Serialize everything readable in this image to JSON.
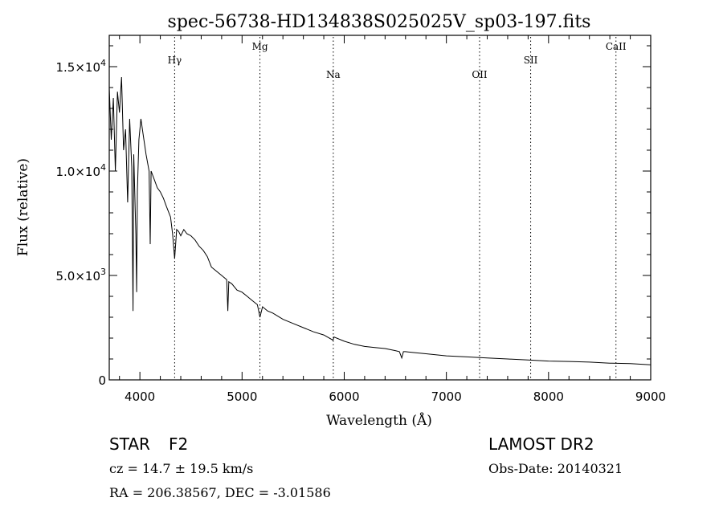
{
  "chart_data": {
    "type": "line",
    "title": "spec-56738-HD134838S025025V_sp03-197.fits",
    "xlabel": "Wavelength (Å)",
    "ylabel": "Flux (relative)",
    "xlim": [
      3700,
      9000
    ],
    "ylim": [
      0,
      16500
    ],
    "x_ticks": [
      4000,
      5000,
      6000,
      7000,
      8000,
      9000
    ],
    "x_tick_labels": [
      "4000",
      "5000",
      "6000",
      "7000",
      "8000",
      "9000"
    ],
    "y_ticks": [
      0,
      5000,
      10000,
      15000
    ],
    "y_tick_labels": [
      {
        "mant": "0",
        "exp": ""
      },
      {
        "mant": "5.0×10",
        "exp": "3"
      },
      {
        "mant": "1.0×10",
        "exp": "4"
      },
      {
        "mant": "1.5×10",
        "exp": "4"
      }
    ],
    "series": [
      {
        "x": [
          3700,
          3720,
          3740,
          3760,
          3780,
          3800,
          3820,
          3840,
          3860,
          3880,
          3900,
          3920,
          3933,
          3940,
          3960,
          3968,
          3975,
          3990,
          4010,
          4030,
          4060,
          4090,
          4101,
          4110,
          4140,
          4170,
          4200,
          4230,
          4260,
          4300,
          4320,
          4340,
          4360,
          4380,
          4400,
          4430,
          4460,
          4500,
          4540,
          4580,
          4620,
          4660,
          4700,
          4750,
          4800,
          4850,
          4861,
          4870,
          4900,
          4950,
          5000,
          5050,
          5100,
          5150,
          5175,
          5200,
          5250,
          5300,
          5400,
          5500,
          5600,
          5700,
          5800,
          5890,
          5900,
          6000,
          6100,
          6200,
          6300,
          6400,
          6500,
          6540,
          6563,
          6580,
          6600,
          6700,
          6800,
          7000,
          7200,
          7400,
          7600,
          7800,
          8000,
          8200,
          8400,
          8600,
          8800,
          9000
        ],
        "y": [
          14000,
          11500,
          13500,
          10000,
          13800,
          12800,
          14500,
          11000,
          12000,
          8500,
          12500,
          10200,
          3300,
          10800,
          7000,
          4200,
          9000,
          11500,
          12500,
          11800,
          10800,
          10000,
          6500,
          10000,
          9600,
          9200,
          9000,
          8700,
          8300,
          7800,
          7000,
          5800,
          7200,
          7100,
          6900,
          7200,
          7000,
          6900,
          6700,
          6400,
          6200,
          5900,
          5400,
          5200,
          5000,
          4800,
          3300,
          4700,
          4600,
          4300,
          4200,
          4000,
          3800,
          3600,
          3000,
          3500,
          3300,
          3200,
          2900,
          2700,
          2500,
          2300,
          2150,
          1900,
          2050,
          1850,
          1700,
          1600,
          1550,
          1500,
          1400,
          1350,
          1050,
          1350,
          1350,
          1300,
          1250,
          1150,
          1100,
          1050,
          1000,
          950,
          900,
          880,
          850,
          800,
          780,
          720
        ]
      }
    ],
    "lines": [
      {
        "label": "Hγ",
        "x": 4340
      },
      {
        "label": "Mg",
        "x": 5175
      },
      {
        "label": "Na",
        "x": 5893
      },
      {
        "label": "OII",
        "x": 7325
      },
      {
        "label": "SII",
        "x": 7825
      },
      {
        "label": "CaII",
        "x": 8660
      }
    ],
    "grid": false
  },
  "info": {
    "object": "STAR",
    "subclass": "F2",
    "cz": "cz = 14.7 ± 19.5 km/s",
    "coords": "RA = 206.38567, DEC =  -3.01586",
    "survey": "LAMOST DR2",
    "obsdate": "Obs-Date: 20140321"
  }
}
